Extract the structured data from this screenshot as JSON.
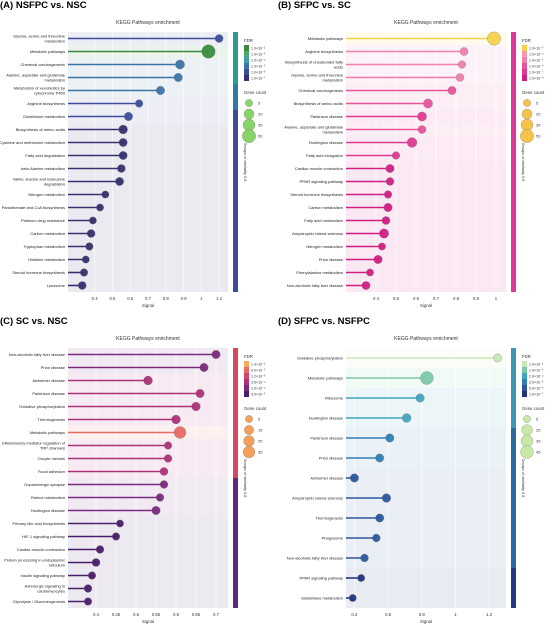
{
  "chart_data": [
    {
      "type": "lollipop",
      "panel_label": "(A) NSFPC vs. NSC",
      "title": "KEGG Pathways enrichment",
      "xlabel": "Signal",
      "xlim": [
        0.25,
        1.15
      ],
      "xticks": [
        0.4,
        0.5,
        0.6,
        0.7,
        0.8,
        0.9,
        1.0,
        1.1
      ],
      "legend": {
        "fdr_title": "FDR",
        "fdr_labels": [
          "1.0×10⁻²",
          "1.0×10⁻³",
          "1.0×10⁻⁴",
          "1.0×10⁻⁵",
          "1.0×10⁻⁶",
          "1.0×10⁻⁷"
        ],
        "fdr_colors": [
          "#3a8a3d",
          "#4aa86a",
          "#3f9ea8",
          "#3e73a8",
          "#3d4d9a",
          "#35306e"
        ],
        "size_title": "Gene count",
        "size_labels": [
          "5",
          "20",
          "35",
          "50"
        ],
        "size_color": "#88d36a",
        "group_label": "Groups of similarity 0.8"
      },
      "groups": [
        {
          "start": 0,
          "end": 4,
          "color": "#2e9b8f"
        },
        {
          "start": 4,
          "end": 6,
          "color": "#2f7aa6"
        },
        {
          "start": 6,
          "end": 23,
          "color": "#3c4c9a"
        }
      ],
      "terms": [
        "Glycine, serine and threonine metabolism",
        "Metabolic pathways",
        "Chemical carcinogenesis",
        "Alanine, aspartate and glutamate metabolism",
        "Metabolism of xenobiotics by cytochrome P450",
        "Arginine biosynthesis",
        "Glutathione metabolism",
        "Biosynthesis of amino acids",
        "Cysteine and methionine metabolism",
        "Fatty acid degradation",
        "beta-Alanine metabolism",
        "Valine, leucine and isoleucine degradation",
        "Nitrogen metabolism",
        "Pantothenate and CoA biosynthesis",
        "Platinum drug resistance",
        "Carbon metabolism",
        "Tryptophan metabolism",
        "Histidine metabolism",
        "Steroid hormone biosynthesis",
        "Lysosome"
      ],
      "signal": [
        1.1,
        1.04,
        0.88,
        0.87,
        0.77,
        0.65,
        0.59,
        0.56,
        0.56,
        0.56,
        0.55,
        0.54,
        0.46,
        0.43,
        0.39,
        0.38,
        0.37,
        0.35,
        0.34,
        0.33
      ],
      "gene_count": [
        8,
        52,
        14,
        10,
        10,
        6,
        10,
        12,
        9,
        9,
        8,
        9,
        5,
        5,
        5,
        8,
        6,
        5,
        6,
        8
      ],
      "fdr_level": [
        4,
        0,
        3,
        3,
        3,
        4,
        4,
        5,
        5,
        5,
        5,
        5,
        5,
        5,
        5,
        5,
        5,
        5,
        5,
        5
      ]
    },
    {
      "type": "lollipop",
      "panel_label": "(B) SFPC vs. SC",
      "title": "KEGG Pathways enrichment",
      "xlabel": "Signal",
      "xlim": [
        0.25,
        1.05
      ],
      "xticks": [
        0.4,
        0.5,
        0.6,
        0.7,
        0.8,
        0.9,
        1.0
      ],
      "legend": {
        "fdr_title": "FDR",
        "fdr_labels": [
          "1.0×10⁻³",
          "1.0×10⁻⁴",
          "1.0×10⁻⁵",
          "1.0×10⁻⁶",
          "1.0×10⁻⁷",
          "1.0×10⁻⁸"
        ],
        "fdr_colors": [
          "#f3d24a",
          "#f39ab0",
          "#ee7fae",
          "#e6549a",
          "#de3a92",
          "#d11e84"
        ],
        "size_title": "Gene count",
        "size_labels": [
          "5",
          "20",
          "35",
          "50"
        ],
        "size_color": "#f6c24a",
        "group_label": "Groups of similarity 0.8"
      },
      "groups": [
        {
          "start": 0,
          "end": 23,
          "color": "#e0389a"
        }
      ],
      "terms": [
        "Metabolic pathways",
        "Arginine biosynthesis",
        "Biosynthesis of unsaturated fatty acids",
        "Glycine, serine and threonine metabolism",
        "Chemical carcinogenesis",
        "Biosynthesis of amino acids",
        "Parkinson disease",
        "Alanine, aspartate and glutamate metabolism",
        "Huntington disease",
        "Fatty acid elongation",
        "Cardiac muscle contraction",
        "PPAR signaling pathway",
        "Steroid hormone biosynthesis",
        "Carbon metabolism",
        "Fatty acid metabolism",
        "Amyotrophic lateral sclerosis",
        "Nitrogen metabolism",
        "Prion disease",
        "Phenylalanine metabolism",
        "Non-alcoholic fatty liver disease"
      ],
      "signal": [
        0.99,
        0.84,
        0.83,
        0.82,
        0.78,
        0.66,
        0.63,
        0.63,
        0.58,
        0.5,
        0.47,
        0.47,
        0.46,
        0.46,
        0.45,
        0.44,
        0.43,
        0.41,
        0.37,
        0.35
      ],
      "gene_count": [
        50,
        8,
        6,
        8,
        9,
        14,
        14,
        8,
        18,
        6,
        9,
        7,
        6,
        10,
        8,
        15,
        5,
        10,
        5,
        9
      ],
      "fdr_level": [
        0,
        2,
        2,
        2,
        3,
        3,
        4,
        3,
        4,
        4,
        5,
        5,
        5,
        5,
        5,
        5,
        5,
        5,
        5,
        5
      ]
    },
    {
      "type": "lollipop",
      "panel_label": "(C) SC vs. NSC",
      "title": "KEGG Pathways enrichment",
      "xlabel": "Signal",
      "xlim": [
        0.33,
        0.73
      ],
      "xticks": [
        0.4,
        0.45,
        0.5,
        0.55,
        0.6,
        0.65,
        0.7
      ],
      "legend": {
        "fdr_title": "FDR",
        "fdr_labels": [
          "1.4×10⁻²",
          "4.0×10⁻³",
          "1.2×10⁻³",
          "3.5×10⁻⁴",
          "1.0×10⁻⁴",
          "3.0×10⁻⁵"
        ],
        "fdr_colors": [
          "#f7a85a",
          "#e86b63",
          "#d2466e",
          "#ad3178",
          "#7a2a7c",
          "#4b1e6b"
        ],
        "size_title": "Gene count",
        "size_labels": [
          "5",
          "15",
          "25",
          "35"
        ],
        "size_color": "#f4a05c",
        "group_label": "Groups of similarity 0.8"
      },
      "groups": [
        {
          "start": 0,
          "end": 10,
          "color": "#d8465f"
        },
        {
          "start": 10,
          "end": 23,
          "color": "#5b2a7c"
        }
      ],
      "terms": [
        "Non-alcoholic fatty liver disease",
        "Prion disease",
        "Alzheimer disease",
        "Parkinson disease",
        "Oxidative phosphorylation",
        "Thermogenesis",
        "Metabolic pathways",
        "Inflammatory mediator regulation of TRP channels",
        "Oocyte meiosis",
        "Focal adhesion",
        "Dopaminergic synapse",
        "Retinol metabolism",
        "Huntington disease",
        "Primary bile acid biosynthesis",
        "HIF-1 signaling pathway",
        "Cardiac muscle contraction",
        "Protein processing in endoplasmic reticulum",
        "Insulin signaling pathway",
        "Adrenergic signaling in cardiomyocytes",
        "Glycolysis / Gluconeogenesis"
      ],
      "signal": [
        0.7,
        0.67,
        0.53,
        0.66,
        0.65,
        0.6,
        0.61,
        0.58,
        0.58,
        0.57,
        0.57,
        0.56,
        0.55,
        0.46,
        0.45,
        0.41,
        0.4,
        0.39,
        0.38,
        0.38
      ],
      "gene_count": [
        10,
        10,
        12,
        10,
        11,
        12,
        35,
        6,
        7,
        8,
        7,
        7,
        10,
        5,
        6,
        7,
        8,
        6,
        7,
        6
      ],
      "fdr_level": [
        4,
        4,
        3,
        3,
        3,
        3,
        1,
        3,
        3,
        3,
        4,
        4,
        4,
        5,
        5,
        5,
        5,
        5,
        5,
        5
      ]
    },
    {
      "type": "lollipop",
      "panel_label": "(D) SFPC vs. NSFPC",
      "title": "KEGG Pathways enrichment",
      "xlabel": "Signal",
      "xlim": [
        0.35,
        1.3
      ],
      "xticks": [
        0.4,
        0.6,
        0.8,
        1.0,
        1.2
      ],
      "legend": {
        "fdr_title": "FDR",
        "fdr_labels": [
          "1.0×10⁻²",
          "1.0×10⁻³",
          "2.0×10⁻⁴",
          "3.0×10⁻⁵",
          "5.0×10⁻⁶",
          "1.0×10⁻⁷"
        ],
        "fdr_colors": [
          "#c9e6b5",
          "#7cc8a7",
          "#40a6bd",
          "#2e7fb2",
          "#2c559c",
          "#223579"
        ],
        "size_title": "Gene count",
        "size_labels": [
          "5",
          "25",
          "35",
          "45"
        ],
        "size_color": "#c9e8a8",
        "group_label": "Groups of similarity 0.8"
      },
      "groups": [
        {
          "start": 0,
          "end": 4,
          "color": "#3c97b4"
        },
        {
          "start": 4,
          "end": 11,
          "color": "#2a6aa0"
        },
        {
          "start": 11,
          "end": 14,
          "color": "#243a82"
        }
      ],
      "terms": [
        "Oxidative phosphorylation",
        "Metabolic pathways",
        "Ribosome",
        "Huntington disease",
        "Parkinson disease",
        "Prion disease",
        "Alzheimer disease",
        "Amyotrophic lateral sclerosis",
        "Thermogenesis",
        "Phagosome",
        "Non-alcoholic fatty liver disease",
        "PPAR signaling pathway",
        "Glutathione metabolism"
      ],
      "signal": [
        1.25,
        0.83,
        0.79,
        0.71,
        0.61,
        0.55,
        0.4,
        0.59,
        0.55,
        0.53,
        0.46,
        0.44,
        0.39
      ],
      "gene_count": [
        9,
        45,
        10,
        12,
        10,
        9,
        10,
        11,
        9,
        7,
        7,
        5,
        5
      ],
      "fdr_level": [
        0,
        1,
        2,
        2,
        3,
        3,
        4,
        4,
        4,
        4,
        4,
        5,
        5
      ]
    }
  ]
}
